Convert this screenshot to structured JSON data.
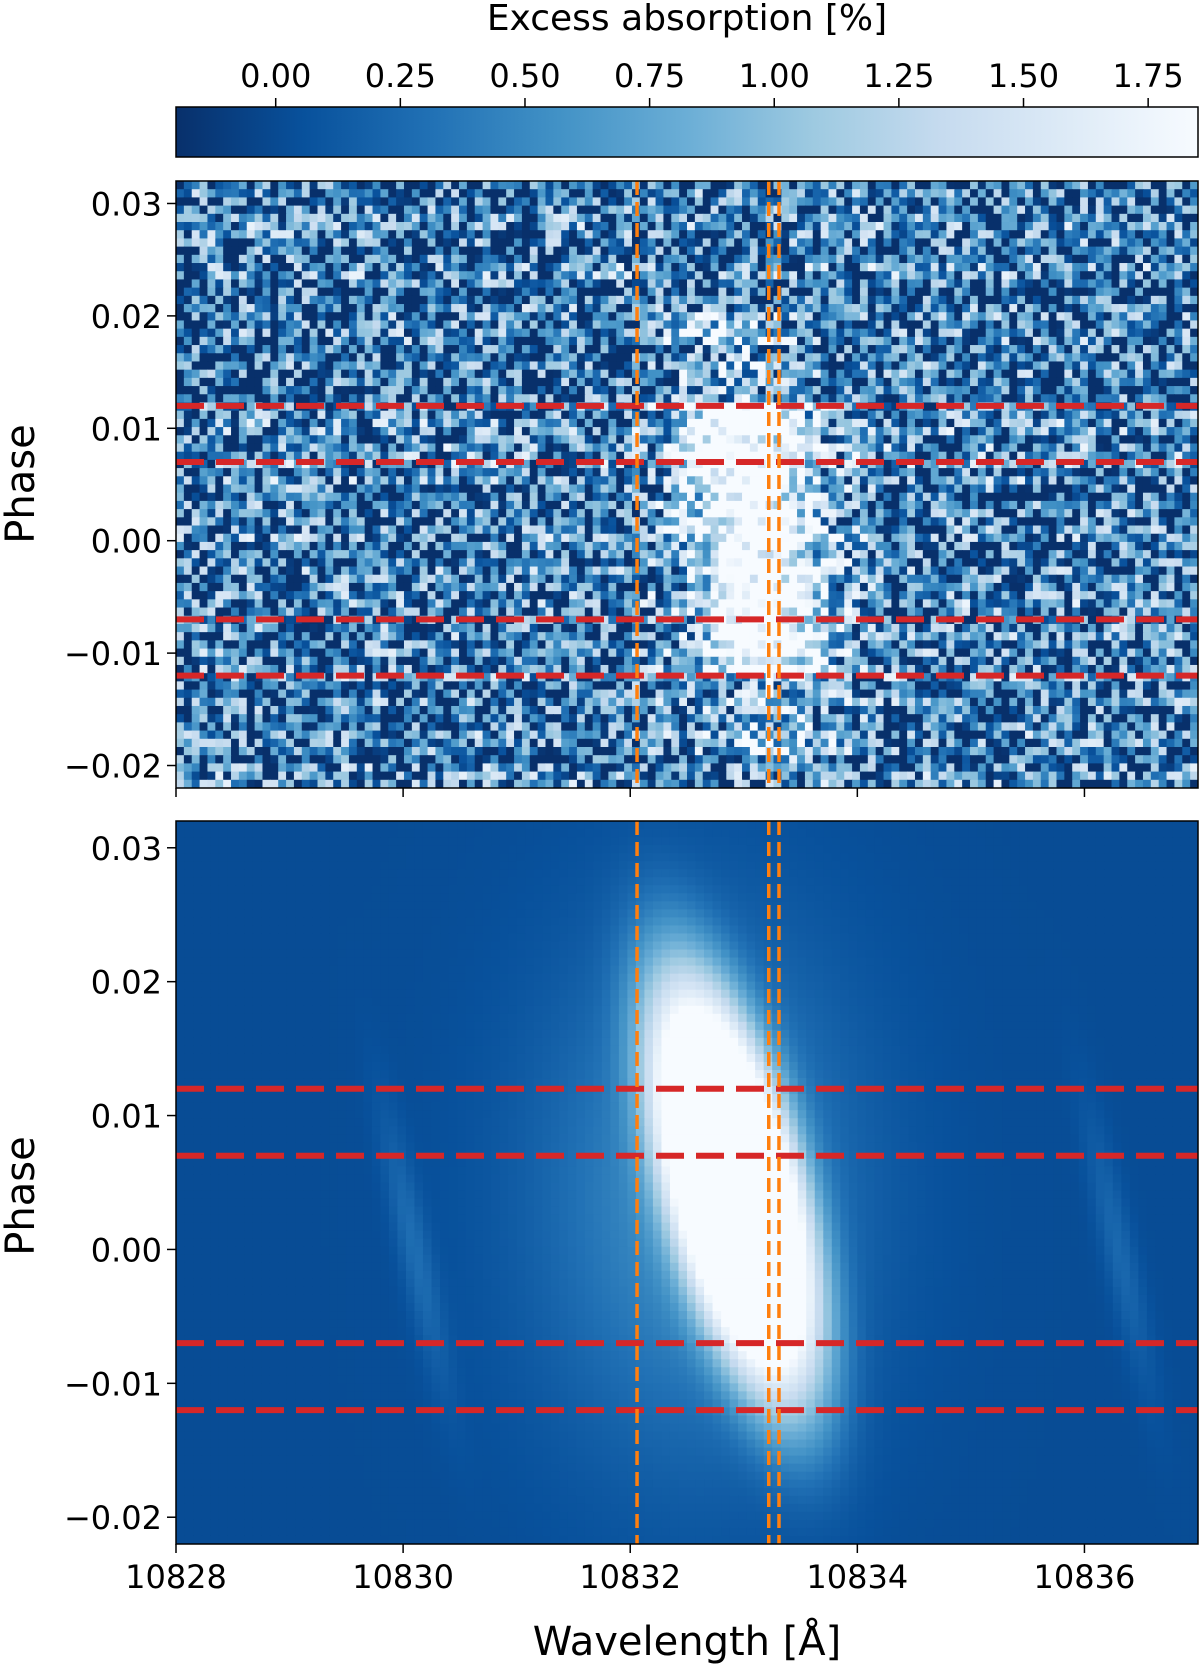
{
  "chart_data": [
    {
      "type": "heatmap",
      "panel": "observed",
      "ylabel": "Phase",
      "xlim": [
        10828,
        10837
      ],
      "ylim": [
        -0.022,
        0.032
      ],
      "x_ticks": [
        10828,
        10830,
        10832,
        10834,
        10836
      ],
      "y_ticks": [
        -0.02,
        -0.01,
        0.0,
        0.01,
        0.02,
        0.03
      ],
      "y_tick_labels": [
        "−0.02",
        "−0.01",
        "0.00",
        "0.01",
        "0.02",
        "0.03"
      ],
      "absorption_feature": {
        "center_wavelength": 10833.1,
        "phase_range": [
          -0.012,
          0.012
        ],
        "peak_excess_percent": 1.85
      },
      "vertical_lines": {
        "color": "#ff7f0e",
        "style": "dashed",
        "x": [
          10832.06,
          10833.22,
          10833.31
        ]
      },
      "horizontal_lines": {
        "color": "#d62728",
        "style": "dashed",
        "y": [
          -0.012,
          -0.007,
          0.007,
          0.012
        ]
      }
    },
    {
      "type": "heatmap",
      "panel": "model",
      "ylabel": "Phase",
      "xlabel": "Wavelength [Å]",
      "xlim": [
        10828,
        10837
      ],
      "ylim": [
        -0.022,
        0.032
      ],
      "x_ticks": [
        10828,
        10830,
        10832,
        10834,
        10836
      ],
      "x_tick_labels": [
        "10828",
        "10830",
        "10832",
        "10834",
        "10836"
      ],
      "y_ticks": [
        -0.02,
        -0.01,
        0.0,
        0.01,
        0.02,
        0.03
      ],
      "y_tick_labels": [
        "−0.02",
        "−0.01",
        "0.00",
        "0.01",
        "0.02",
        "0.03"
      ],
      "absorption_feature": {
        "center_wavelength": 10833.1,
        "phase_range": [
          -0.014,
          0.024
        ],
        "peak_excess_percent": 1.85
      },
      "vertical_lines": {
        "color": "#ff7f0e",
        "style": "dashed",
        "x": [
          10832.06,
          10833.22,
          10833.31
        ]
      },
      "horizontal_lines": {
        "color": "#d62728",
        "style": "dashed",
        "y": [
          -0.012,
          -0.007,
          0.007,
          0.012
        ]
      }
    }
  ],
  "colorbar": {
    "label": "Excess absorption [%]",
    "range": [
      -0.2,
      1.85
    ],
    "ticks": [
      0.0,
      0.25,
      0.5,
      0.75,
      1.0,
      1.25,
      1.5,
      1.75
    ],
    "tick_labels": [
      "0.00",
      "0.25",
      "0.50",
      "0.75",
      "1.00",
      "1.25",
      "1.50",
      "1.75"
    ],
    "colormap": "Blues_r",
    "colors": [
      "#08306b",
      "#08519c",
      "#2171b5",
      "#4292c6",
      "#6baed6",
      "#9ecae1",
      "#c6dbef",
      "#deebf7",
      "#f7fbff"
    ]
  }
}
